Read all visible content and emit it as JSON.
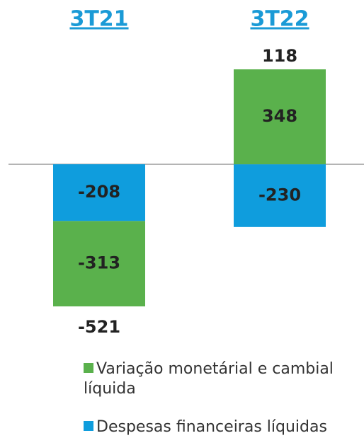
{
  "chart_data": {
    "type": "stacked_bar",
    "categories": [
      "3T21",
      "3T22"
    ],
    "series": [
      {
        "name": "Variação monetárial e cambial líquida",
        "color": "#5ab14c",
        "values": [
          -313,
          348
        ]
      },
      {
        "name": "Despesas financeiras líquidas",
        "color": "#0f9ddd",
        "values": [
          -208,
          -230
        ]
      }
    ],
    "totals": [
      -521,
      118
    ]
  }
}
